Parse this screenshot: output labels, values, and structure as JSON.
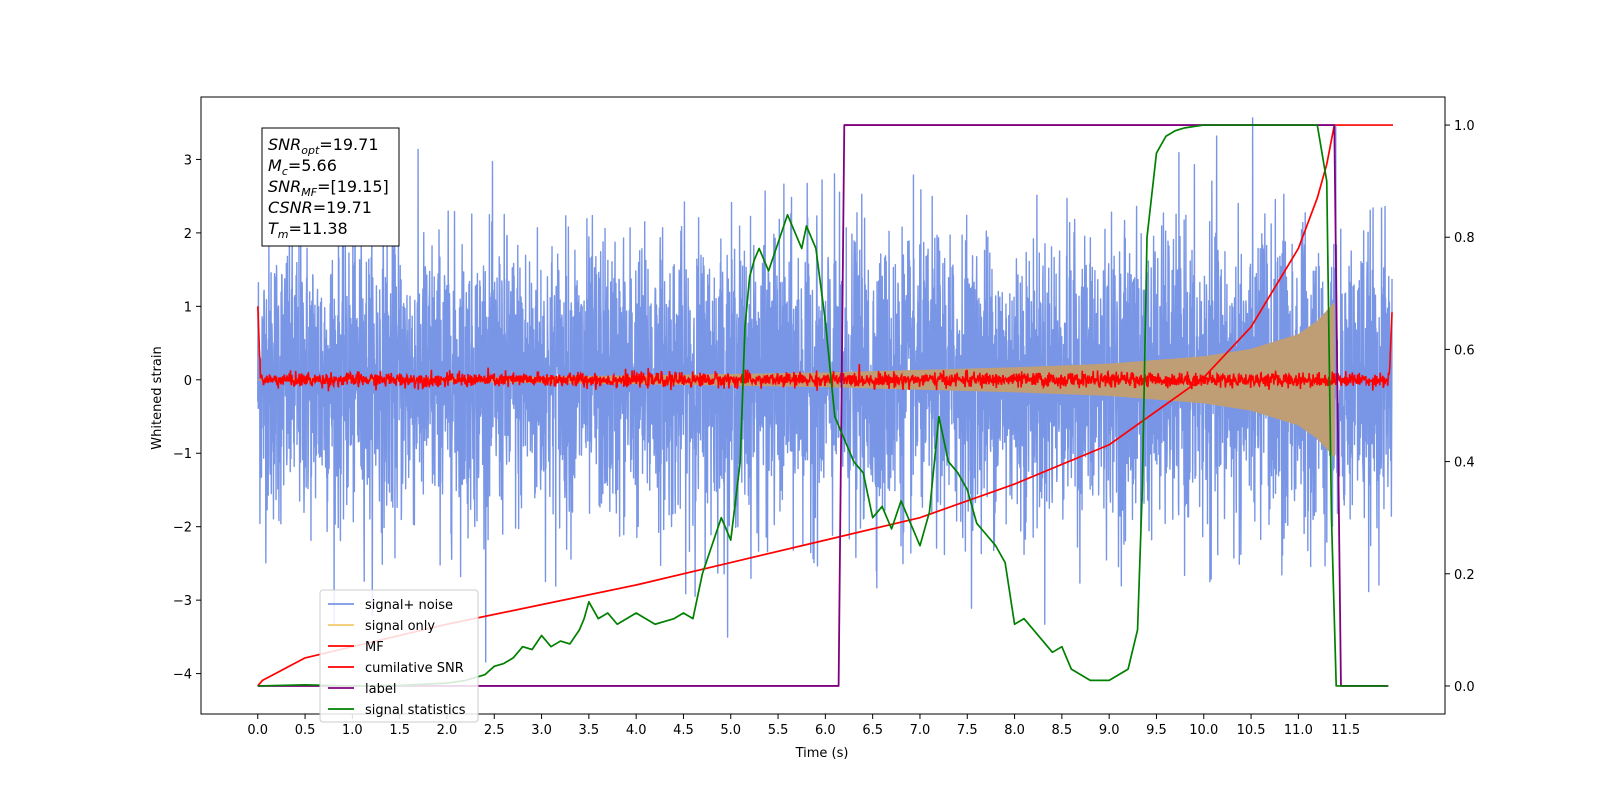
{
  "chart_data": {
    "type": "line",
    "xlabel": "Time (s)",
    "ylabel": "Whitened strain",
    "xlim": [
      -0.6,
      12.55
    ],
    "ylim": [
      -4.55,
      3.85
    ],
    "y2lim": [
      -0.05,
      1.05
    ],
    "xticks": [
      "0.0",
      "0.5",
      "1.0",
      "1.5",
      "2.0",
      "2.5",
      "3.0",
      "3.5",
      "4.0",
      "4.5",
      "5.0",
      "5.5",
      "6.0",
      "6.5",
      "7.0",
      "7.5",
      "8.0",
      "8.5",
      "9.0",
      "9.5",
      "10.0",
      "10.5",
      "11.0",
      "11.5"
    ],
    "yticks": [
      "3",
      "2",
      "1",
      "0",
      "−1",
      "−2",
      "−3",
      "−4"
    ],
    "y2ticks": [
      "1.0",
      "0.8",
      "0.6",
      "0.4",
      "0.2",
      "0.0"
    ],
    "grid": false,
    "legend_position": "lower-left",
    "annotation": {
      "lines": [
        {
          "base": "SNR",
          "sub": "opt",
          "value": "=19.71"
        },
        {
          "base": "M",
          "sub": "c",
          "value": "=5.66"
        },
        {
          "base": "SNR",
          "sub": "MF",
          "value": "=[19.15]"
        },
        {
          "base": "CSNR",
          "sub": "",
          "value": "=19.71"
        },
        {
          "base": "T",
          "sub": "m",
          "value": "=11.38"
        }
      ]
    },
    "series": [
      {
        "name": "signal+ noise",
        "color": "#7895e6",
        "axis": "left",
        "noise_level": 1.0,
        "envelope": {
          "x": [
            0,
            2,
            4,
            6,
            8,
            9,
            10,
            10.5,
            11,
            11.2,
            11.38
          ],
          "y": [
            0,
            0.03,
            0.06,
            0.1,
            0.17,
            0.22,
            0.32,
            0.42,
            0.62,
            0.8,
            1.05
          ]
        }
      },
      {
        "name": "signal only",
        "color": "#f5c96b",
        "axis": "left",
        "envelope": {
          "x": [
            0,
            2,
            4,
            6,
            8,
            9,
            10,
            10.5,
            11,
            11.2,
            11.38
          ],
          "y": [
            0,
            0.03,
            0.06,
            0.1,
            0.17,
            0.22,
            0.32,
            0.42,
            0.62,
            0.8,
            1.05
          ]
        }
      },
      {
        "name": "MF",
        "color": "#ff0000",
        "axis": "left",
        "baseline": 0,
        "noise_level": 0.05,
        "start_value": 1.0,
        "end_value": 0.92
      },
      {
        "name": "cumilative SNR",
        "color": "#ff0000",
        "axis": "right",
        "x": [
          0,
          0.05,
          0.5,
          1,
          2,
          3,
          4,
          5,
          6,
          7,
          8,
          9,
          10,
          10.5,
          11,
          11.2,
          11.3,
          11.38,
          12
        ],
        "y": [
          0.0,
          0.01,
          0.05,
          0.07,
          0.11,
          0.145,
          0.18,
          0.22,
          0.26,
          0.3,
          0.36,
          0.43,
          0.55,
          0.64,
          0.78,
          0.87,
          0.93,
          1.0,
          1.0
        ]
      },
      {
        "name": "label",
        "color": "#800080",
        "axis": "right",
        "x": [
          0,
          6.14,
          6.2,
          11.38,
          11.45,
          11.95
        ],
        "y": [
          0.0,
          0.0,
          1.0,
          1.0,
          0.0,
          0.0
        ]
      },
      {
        "name": "signal statistics",
        "color": "#008000",
        "axis": "right",
        "x": [
          0,
          0.5,
          1,
          1.5,
          2,
          2.2,
          2.4,
          2.5,
          2.6,
          2.7,
          2.8,
          2.9,
          3.0,
          3.1,
          3.2,
          3.3,
          3.4,
          3.45,
          3.5,
          3.6,
          3.7,
          3.8,
          3.9,
          4.0,
          4.1,
          4.2,
          4.3,
          4.4,
          4.5,
          4.6,
          4.7,
          4.8,
          4.9,
          5.0,
          5.1,
          5.15,
          5.2,
          5.25,
          5.3,
          5.4,
          5.5,
          5.6,
          5.7,
          5.75,
          5.8,
          5.9,
          6.0,
          6.1,
          6.2,
          6.3,
          6.4,
          6.5,
          6.6,
          6.7,
          6.8,
          6.9,
          7.0,
          7.1,
          7.2,
          7.3,
          7.4,
          7.5,
          7.6,
          7.7,
          7.8,
          7.9,
          8.0,
          8.1,
          8.2,
          8.3,
          8.4,
          8.5,
          8.6,
          8.7,
          8.8,
          8.9,
          9.0,
          9.1,
          9.2,
          9.3,
          9.35,
          9.4,
          9.5,
          9.6,
          9.7,
          9.8,
          10.0,
          10.5,
          11.0,
          11.2,
          11.3,
          11.35,
          11.4,
          11.45,
          11.5,
          11.95
        ],
        "y": [
          0.0,
          0.002,
          0.0,
          0.001,
          0.005,
          0.01,
          0.02,
          0.035,
          0.04,
          0.05,
          0.07,
          0.065,
          0.09,
          0.07,
          0.08,
          0.075,
          0.1,
          0.12,
          0.15,
          0.12,
          0.13,
          0.11,
          0.12,
          0.13,
          0.12,
          0.11,
          0.115,
          0.12,
          0.13,
          0.12,
          0.2,
          0.25,
          0.3,
          0.26,
          0.4,
          0.64,
          0.73,
          0.76,
          0.78,
          0.74,
          0.79,
          0.84,
          0.8,
          0.78,
          0.82,
          0.78,
          0.65,
          0.48,
          0.44,
          0.4,
          0.38,
          0.3,
          0.32,
          0.28,
          0.33,
          0.29,
          0.25,
          0.31,
          0.48,
          0.4,
          0.38,
          0.35,
          0.29,
          0.27,
          0.25,
          0.22,
          0.11,
          0.12,
          0.1,
          0.08,
          0.06,
          0.07,
          0.03,
          0.02,
          0.01,
          0.01,
          0.01,
          0.02,
          0.03,
          0.1,
          0.35,
          0.8,
          0.95,
          0.98,
          0.99,
          0.995,
          1.0,
          1.0,
          1.0,
          1.0,
          0.9,
          0.3,
          0.0,
          0.0,
          0.0,
          0.0
        ]
      }
    ]
  }
}
